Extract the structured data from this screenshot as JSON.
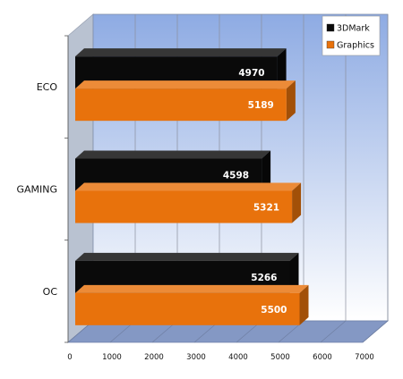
{
  "chart_data": {
    "type": "bar",
    "orientation": "horizontal",
    "style": "3d",
    "categories": [
      "ECO",
      "GAMING",
      "OC"
    ],
    "series": [
      {
        "name": "3DMark",
        "values": [
          4970,
          4598,
          5266
        ],
        "color": "#0a0a0a"
      },
      {
        "name": "Graphics",
        "values": [
          5189,
          5321,
          5500
        ],
        "color": "#e8720c"
      }
    ],
    "xlim": [
      0,
      7000
    ],
    "x_ticks": [
      "0",
      "1000",
      "2000",
      "3000",
      "4000",
      "5000",
      "6000",
      "7000"
    ],
    "grid": true,
    "legend_position": "top-right",
    "data_labels": true,
    "colors": {
      "wall_top": "#8eabe3",
      "wall_bottom": "#ffffff",
      "floor": "#8498c4",
      "side": "#b9c2d1"
    }
  }
}
